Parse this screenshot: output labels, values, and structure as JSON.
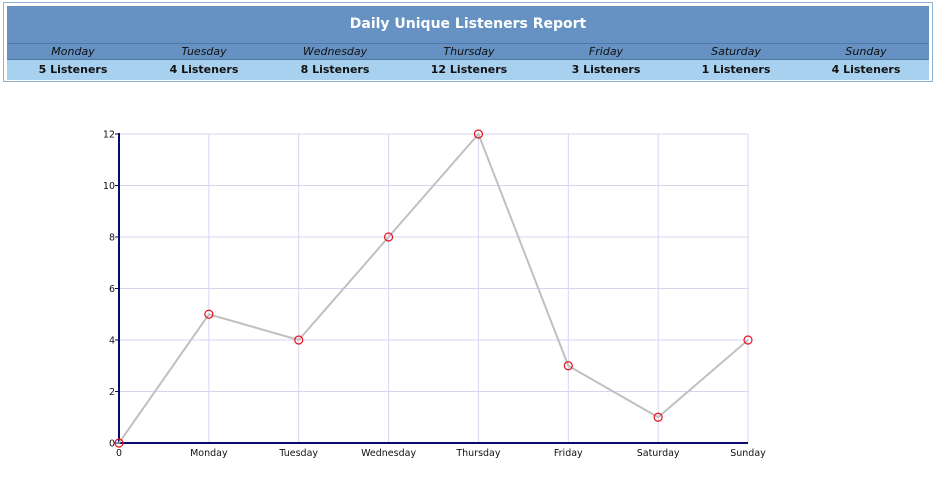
{
  "report": {
    "title": "Daily Unique Listeners Report",
    "days": [
      {
        "day": "Monday",
        "count_label": "5 Listeners"
      },
      {
        "day": "Tuesday",
        "count_label": "4 Listeners"
      },
      {
        "day": "Wednesday",
        "count_label": "8 Listeners"
      },
      {
        "day": "Thursday",
        "count_label": "12 Listeners"
      },
      {
        "day": "Friday",
        "count_label": "3 Listeners"
      },
      {
        "day": "Saturday",
        "count_label": "1 Listeners"
      },
      {
        "day": "Sunday",
        "count_label": "4 Listeners"
      }
    ]
  },
  "colors": {
    "header_bg": "#6592c2",
    "count_row_bg": "#a8d0ef",
    "line": "#c0c0c0",
    "marker": "#e8101c",
    "axis": "#0a0a6e",
    "grid": "#d8d4f0"
  },
  "chart_data": {
    "type": "line",
    "categories": [
      "0",
      "Monday",
      "Tuesday",
      "Wednesday",
      "Thursday",
      "Friday",
      "Saturday",
      "Sunday"
    ],
    "series": [
      {
        "values": [
          0,
          5,
          4,
          8,
          12,
          3,
          1,
          4
        ]
      }
    ],
    "y_ticks": [
      "0",
      "2",
      "4",
      "6",
      "8",
      "10",
      "12"
    ],
    "ylim": [
      0,
      12
    ],
    "grid": true,
    "legend": "none"
  }
}
